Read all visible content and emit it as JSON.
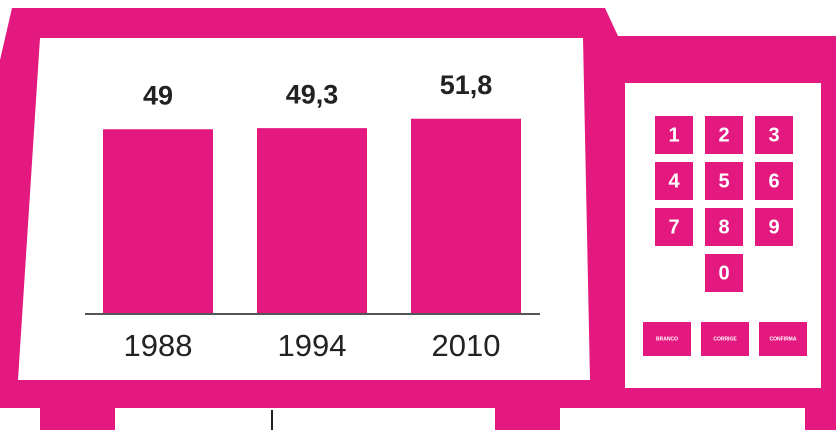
{
  "chart_data": {
    "type": "bar",
    "categories": [
      "1988",
      "1994",
      "2010"
    ],
    "values": [
      49,
      49.3,
      51.8
    ],
    "value_labels": [
      "49",
      "49,3",
      "51,8"
    ],
    "color": "#e3197f"
  },
  "keypad": {
    "keys": [
      "1",
      "2",
      "3",
      "4",
      "5",
      "6",
      "7",
      "8",
      "9",
      "0"
    ],
    "buttons": [
      "BRANCO",
      "CORRIGE",
      "CONFIRMA"
    ]
  }
}
